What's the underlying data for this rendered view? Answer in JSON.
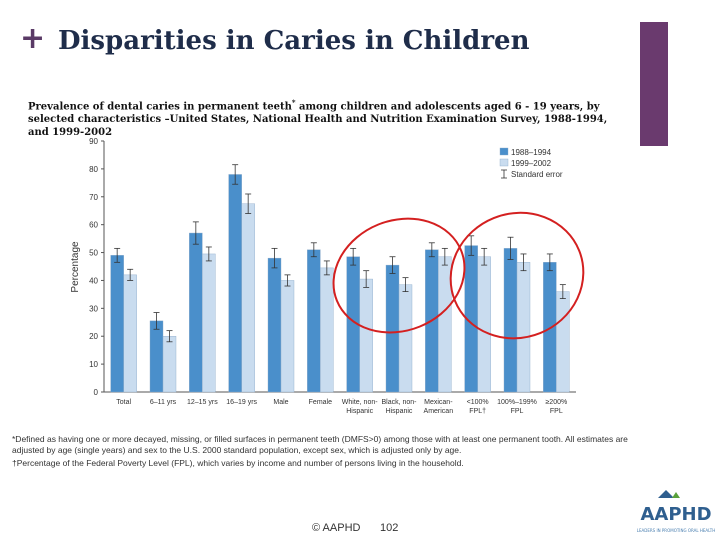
{
  "slide": {
    "plus": "+",
    "title": "Disparities in Caries in Children",
    "subtitle_main": "Prevalence of dental caries in permanent teeth",
    "subtitle_mark": "*",
    "subtitle_rest": " among children and adolescents aged 6 - 19 years, by selected characteristics –United States, National Health and Nutrition Examination Survey, 1988-1994, and 1999-2002",
    "footnote1": "*Defined as having one or more decayed, missing, or filled surfaces in permanent teeth (DMFS>0) among those with at least one permanent tooth. All estimates are adjusted by age (single years) and sex to the U.S. 2000 standard population, except sex, which is adjusted only by age.",
    "footnote2": "†Percentage of the Federal Poverty Level (FPL), which varies by income and number of persons living in the household.",
    "copyright": "© AAPHD",
    "page_number": "102",
    "logo_text": "AAPHD",
    "logo_tagline": "LEADERS IN PROMOTING ORAL HEALTH"
  },
  "colors": {
    "series1": "#4a8fcb",
    "series2": "#c9dcef",
    "accent": "#6a3a6e",
    "circle": "#d42020"
  },
  "chart_data": {
    "type": "bar",
    "ylabel": "Percentage",
    "ylim": [
      0,
      90
    ],
    "yticks": [
      0,
      10,
      20,
      30,
      40,
      50,
      60,
      70,
      80,
      90
    ],
    "categories": [
      [
        "Total"
      ],
      [
        "6–11 yrs"
      ],
      [
        "12–15 yrs"
      ],
      [
        "16–19 yrs"
      ],
      [
        "Male"
      ],
      [
        "Female"
      ],
      [
        "White, non-",
        "Hispanic"
      ],
      [
        "Black, non-",
        "Hispanic"
      ],
      [
        "Mexican-",
        "American"
      ],
      [
        "<100%",
        "FPL†"
      ],
      [
        "100%–199%",
        "FPL"
      ],
      [
        "≥200%",
        "FPL"
      ]
    ],
    "series": [
      {
        "name": "1988–1994",
        "values": [
          49,
          25.5,
          57,
          78,
          48,
          51,
          48.5,
          45.5,
          51,
          52.5,
          51.5,
          46.5
        ],
        "errors": [
          2.5,
          3,
          4,
          3.5,
          3.5,
          2.5,
          3,
          3,
          2.5,
          3.5,
          4,
          3
        ]
      },
      {
        "name": "1999–2002",
        "values": [
          42,
          20,
          49.5,
          67.5,
          40,
          44.5,
          40.5,
          38.5,
          48.5,
          48.5,
          46.5,
          36
        ],
        "errors": [
          2,
          2,
          2.5,
          3.5,
          2,
          2.5,
          3,
          2.5,
          3,
          3,
          3,
          2.5
        ]
      }
    ],
    "legend_error_label": "Standard error",
    "legend_position": "top-right",
    "highlighted_groups": [
      [
        6,
        8
      ],
      [
        9,
        11
      ]
    ]
  }
}
